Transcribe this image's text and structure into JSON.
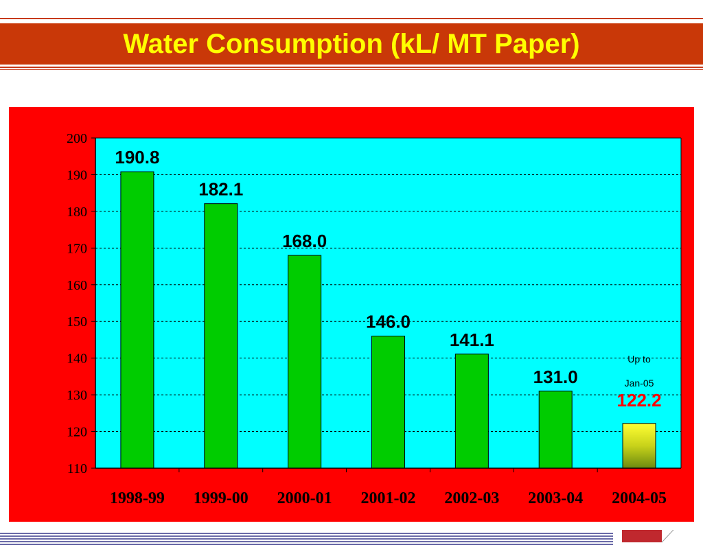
{
  "title": "Water Consumption (kL/ MT Paper)",
  "colors": {
    "title_bg": "#c93808",
    "title_text": "#ffff00",
    "frame": "#ff0000",
    "plot_bg": "#00ffff",
    "bar": "#00cc00",
    "highlight_value": "#ff0000"
  },
  "annotation": {
    "line1": "Up to",
    "line2": "Jan-05"
  },
  "chart_data": {
    "type": "bar",
    "categories": [
      "1998-99",
      "1999-00",
      "2000-01",
      "2001-02",
      "2002-03",
      "2003-04",
      "2004-05"
    ],
    "values": [
      190.8,
      182.1,
      168.0,
      146.0,
      141.1,
      131.0,
      122.2
    ],
    "data_labels": [
      "190.8",
      "182.1",
      "168.0",
      "146.0",
      "141.1",
      "131.0",
      "122.2"
    ],
    "ylim": [
      110,
      200
    ],
    "yticks": [
      110,
      120,
      130,
      140,
      150,
      160,
      170,
      180,
      190,
      200
    ],
    "grid": true
  }
}
